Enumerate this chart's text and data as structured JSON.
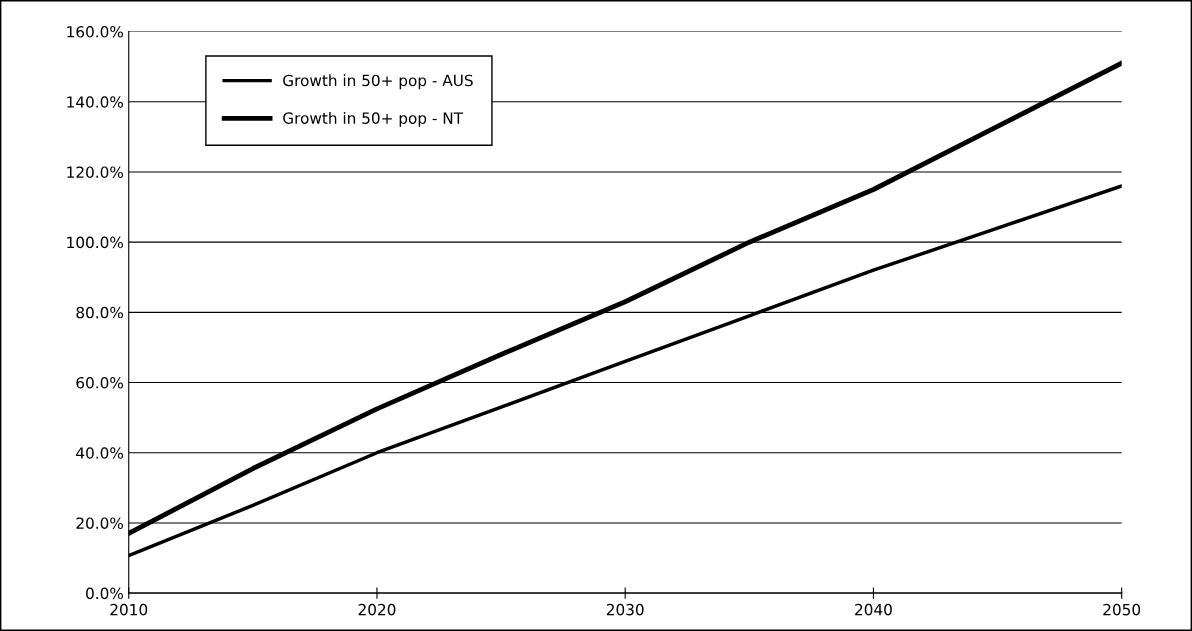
{
  "chart_data": {
    "type": "line",
    "x": [
      2010,
      2015,
      2020,
      2025,
      2030,
      2035,
      2040,
      2045,
      2050
    ],
    "series": [
      {
        "name": "Growth in 50+ pop - AUS",
        "color": "#000000",
        "values": [
          10.7,
          25,
          40,
          53,
          66,
          79,
          92,
          104,
          116
        ]
      },
      {
        "name": "Growth in 50+ pop - NT",
        "color": "#000000",
        "values": [
          17,
          35.5,
          52.5,
          68,
          83,
          100,
          115,
          133,
          151
        ]
      }
    ],
    "xlim": [
      2010,
      2050
    ],
    "xticks": [
      2010,
      2020,
      2030,
      2040,
      2050
    ],
    "ylim": [
      0,
      160
    ],
    "yticks": [
      {
        "value": 0,
        "label": "0.0%"
      },
      {
        "value": 20,
        "label": "20.0%"
      },
      {
        "value": 40,
        "label": "40.0%"
      },
      {
        "value": 60,
        "label": "60.0%"
      },
      {
        "value": 80,
        "label": "80.0%"
      },
      {
        "value": 100,
        "label": "100.0%"
      },
      {
        "value": 120,
        "label": "120.0%"
      },
      {
        "value": 140,
        "label": "140.0%"
      },
      {
        "value": 160,
        "label": "160.0%"
      }
    ],
    "grid": "y",
    "legend": "top left",
    "line_style": "solid",
    "marker": "none"
  }
}
